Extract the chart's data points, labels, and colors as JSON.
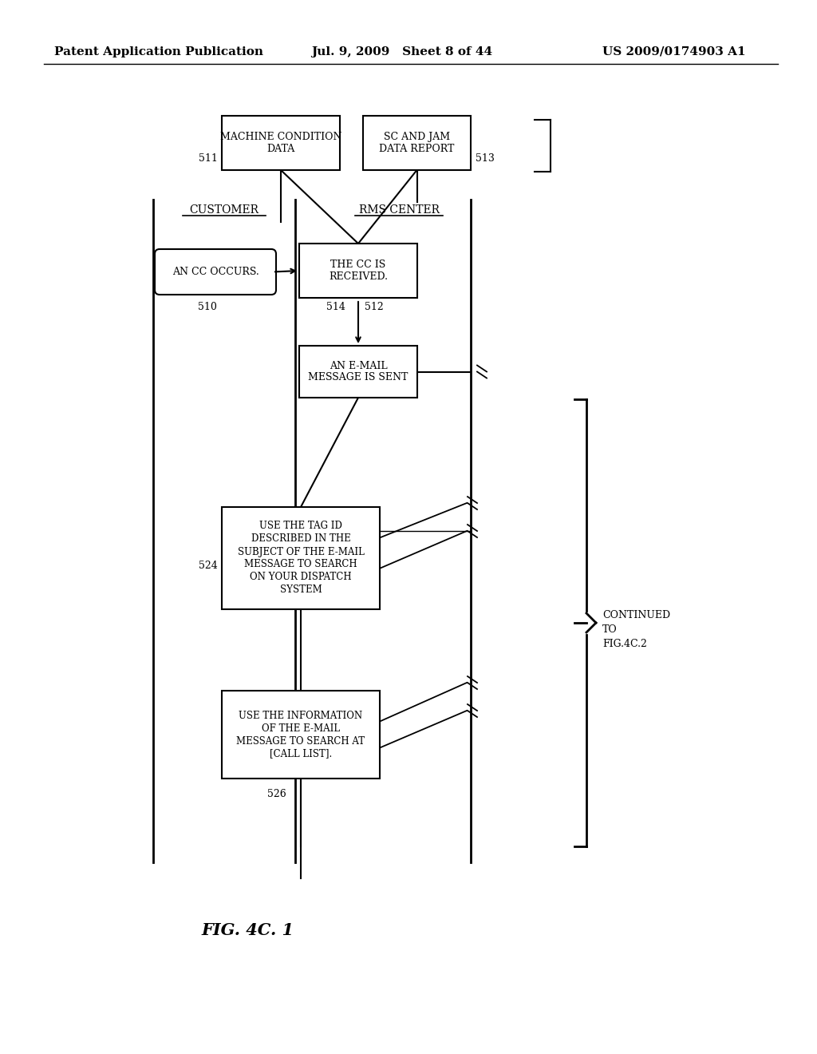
{
  "header_left": "Patent Application Publication",
  "header_mid": "Jul. 9, 2009   Sheet 8 of 44",
  "header_right": "US 2009/0174903 A1",
  "fig_label": "FIG. 4C. 1",
  "customer_label": "CUSTOMER",
  "rms_label": "RMS CENTER",
  "box_511_text": "MACHINE CONDITION\nDATA",
  "box_513_text": "SC AND JAM\nDATA REPORT",
  "box_510_text": "AN CC OCCURS.",
  "box_512_text": "THE CC IS\nRECEIVED.",
  "box_514_text": "AN E-MAIL\nMESSAGE IS SENT",
  "box_524_text": "USE THE TAG ID\nDESCRIBED IN THE\nSUBJECT OF THE E-MAIL\nMESSAGE TO SEARCH\nON YOUR DISPATCH\nSYSTEM",
  "box_526_text": "USE THE INFORMATION\nOF THE E-MAIL\nMESSAGE TO SEARCH AT\n[CALL LIST].",
  "label_511": "511",
  "label_513": "513",
  "label_510": "510",
  "label_512": "512",
  "label_514": "514",
  "label_524": "524",
  "label_526": "526",
  "bg_color": "#ffffff",
  "line_color": "#000000",
  "text_color": "#000000"
}
